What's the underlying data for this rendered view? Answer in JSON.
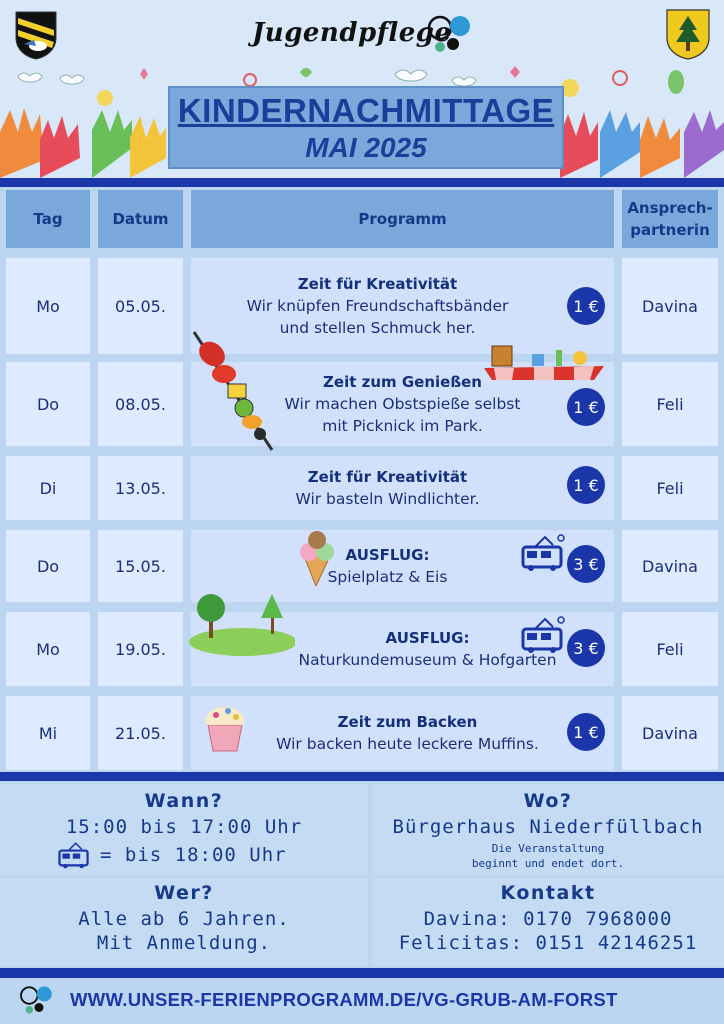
{
  "header": {
    "brand": "Jugendpflege",
    "title": "KINDERNACHMITTAGE",
    "subtitle": "MAI 2025"
  },
  "table": {
    "headers": {
      "day": "Tag",
      "date": "Datum",
      "program": "Programm",
      "contact_1": "Ansprech-",
      "contact_2": "partnerin"
    },
    "rows": [
      {
        "day": "Mo",
        "date": "05.05.",
        "title": "Zeit für Kreativität",
        "line1": "Wir knüpfen Freundschaftsbänder",
        "line2": "und stellen Schmuck her.",
        "price": "1 €",
        "contact": "Davina"
      },
      {
        "day": "Do",
        "date": "08.05.",
        "title": "Zeit zum Genießen",
        "line1": "Wir machen Obstspieße selbst",
        "line2": "mit Picknick im Park.",
        "price": "1 €",
        "contact": "Feli"
      },
      {
        "day": "Di",
        "date": "13.05.",
        "title": "Zeit für Kreativität",
        "line1": "Wir basteln Windlichter.",
        "line2": "",
        "price": "1 €",
        "contact": "Feli"
      },
      {
        "day": "Do",
        "date": "15.05.",
        "title": "AUSFLUG:",
        "line1": "Spielplatz & Eis",
        "line2": "",
        "price": "3 €",
        "contact": "Davina"
      },
      {
        "day": "Mo",
        "date": "19.05.",
        "title": "AUSFLUG:",
        "line1": "Naturkundemuseum & Hofgarten",
        "line2": "",
        "price": "3 €",
        "contact": "Feli"
      },
      {
        "day": "Mi",
        "date": "21.05.",
        "title": "Zeit zum Backen",
        "line1": "Wir backen heute leckere Muffins.",
        "line2": "",
        "price": "1 €",
        "contact": "Davina"
      }
    ]
  },
  "info": {
    "wann": {
      "heading": "Wann?",
      "time": "15:00 bis 17:00 Uhr",
      "bus_time": "= bis 18:00 Uhr"
    },
    "wo": {
      "heading": "Wo?",
      "place": "Bürgerhaus Niederfüllbach",
      "note1": "Die Veranstaltung",
      "note2": "beginnt und endet dort."
    },
    "wer": {
      "heading": "Wer?",
      "line1": "Alle ab 6 Jahren.",
      "line2": "Mit Anmeldung."
    },
    "kontakt": {
      "heading": "Kontakt",
      "line1": "Davina: 0170 7968000",
      "line2": "Felicitas: 0151 42146251"
    }
  },
  "footer": {
    "url": "WWW.UNSER-FERIENPROGRAMM.DE/VG-GRUB-AM-FORST"
  },
  "icons": [
    "coat-of-arms-icon",
    "jugendpflege-logo-icon",
    "tree-crest-icon",
    "fruit-skewer-icon",
    "picnic-icon",
    "ice-cream-icon",
    "park-icon",
    "cupcake-icon",
    "bus-icon"
  ],
  "colors": {
    "accent": "#1a36a8",
    "header_cell": "#7aa8da",
    "cell": "#ddeaff",
    "program_cell": "#d2e1fb",
    "background": "#bcd6f2"
  }
}
